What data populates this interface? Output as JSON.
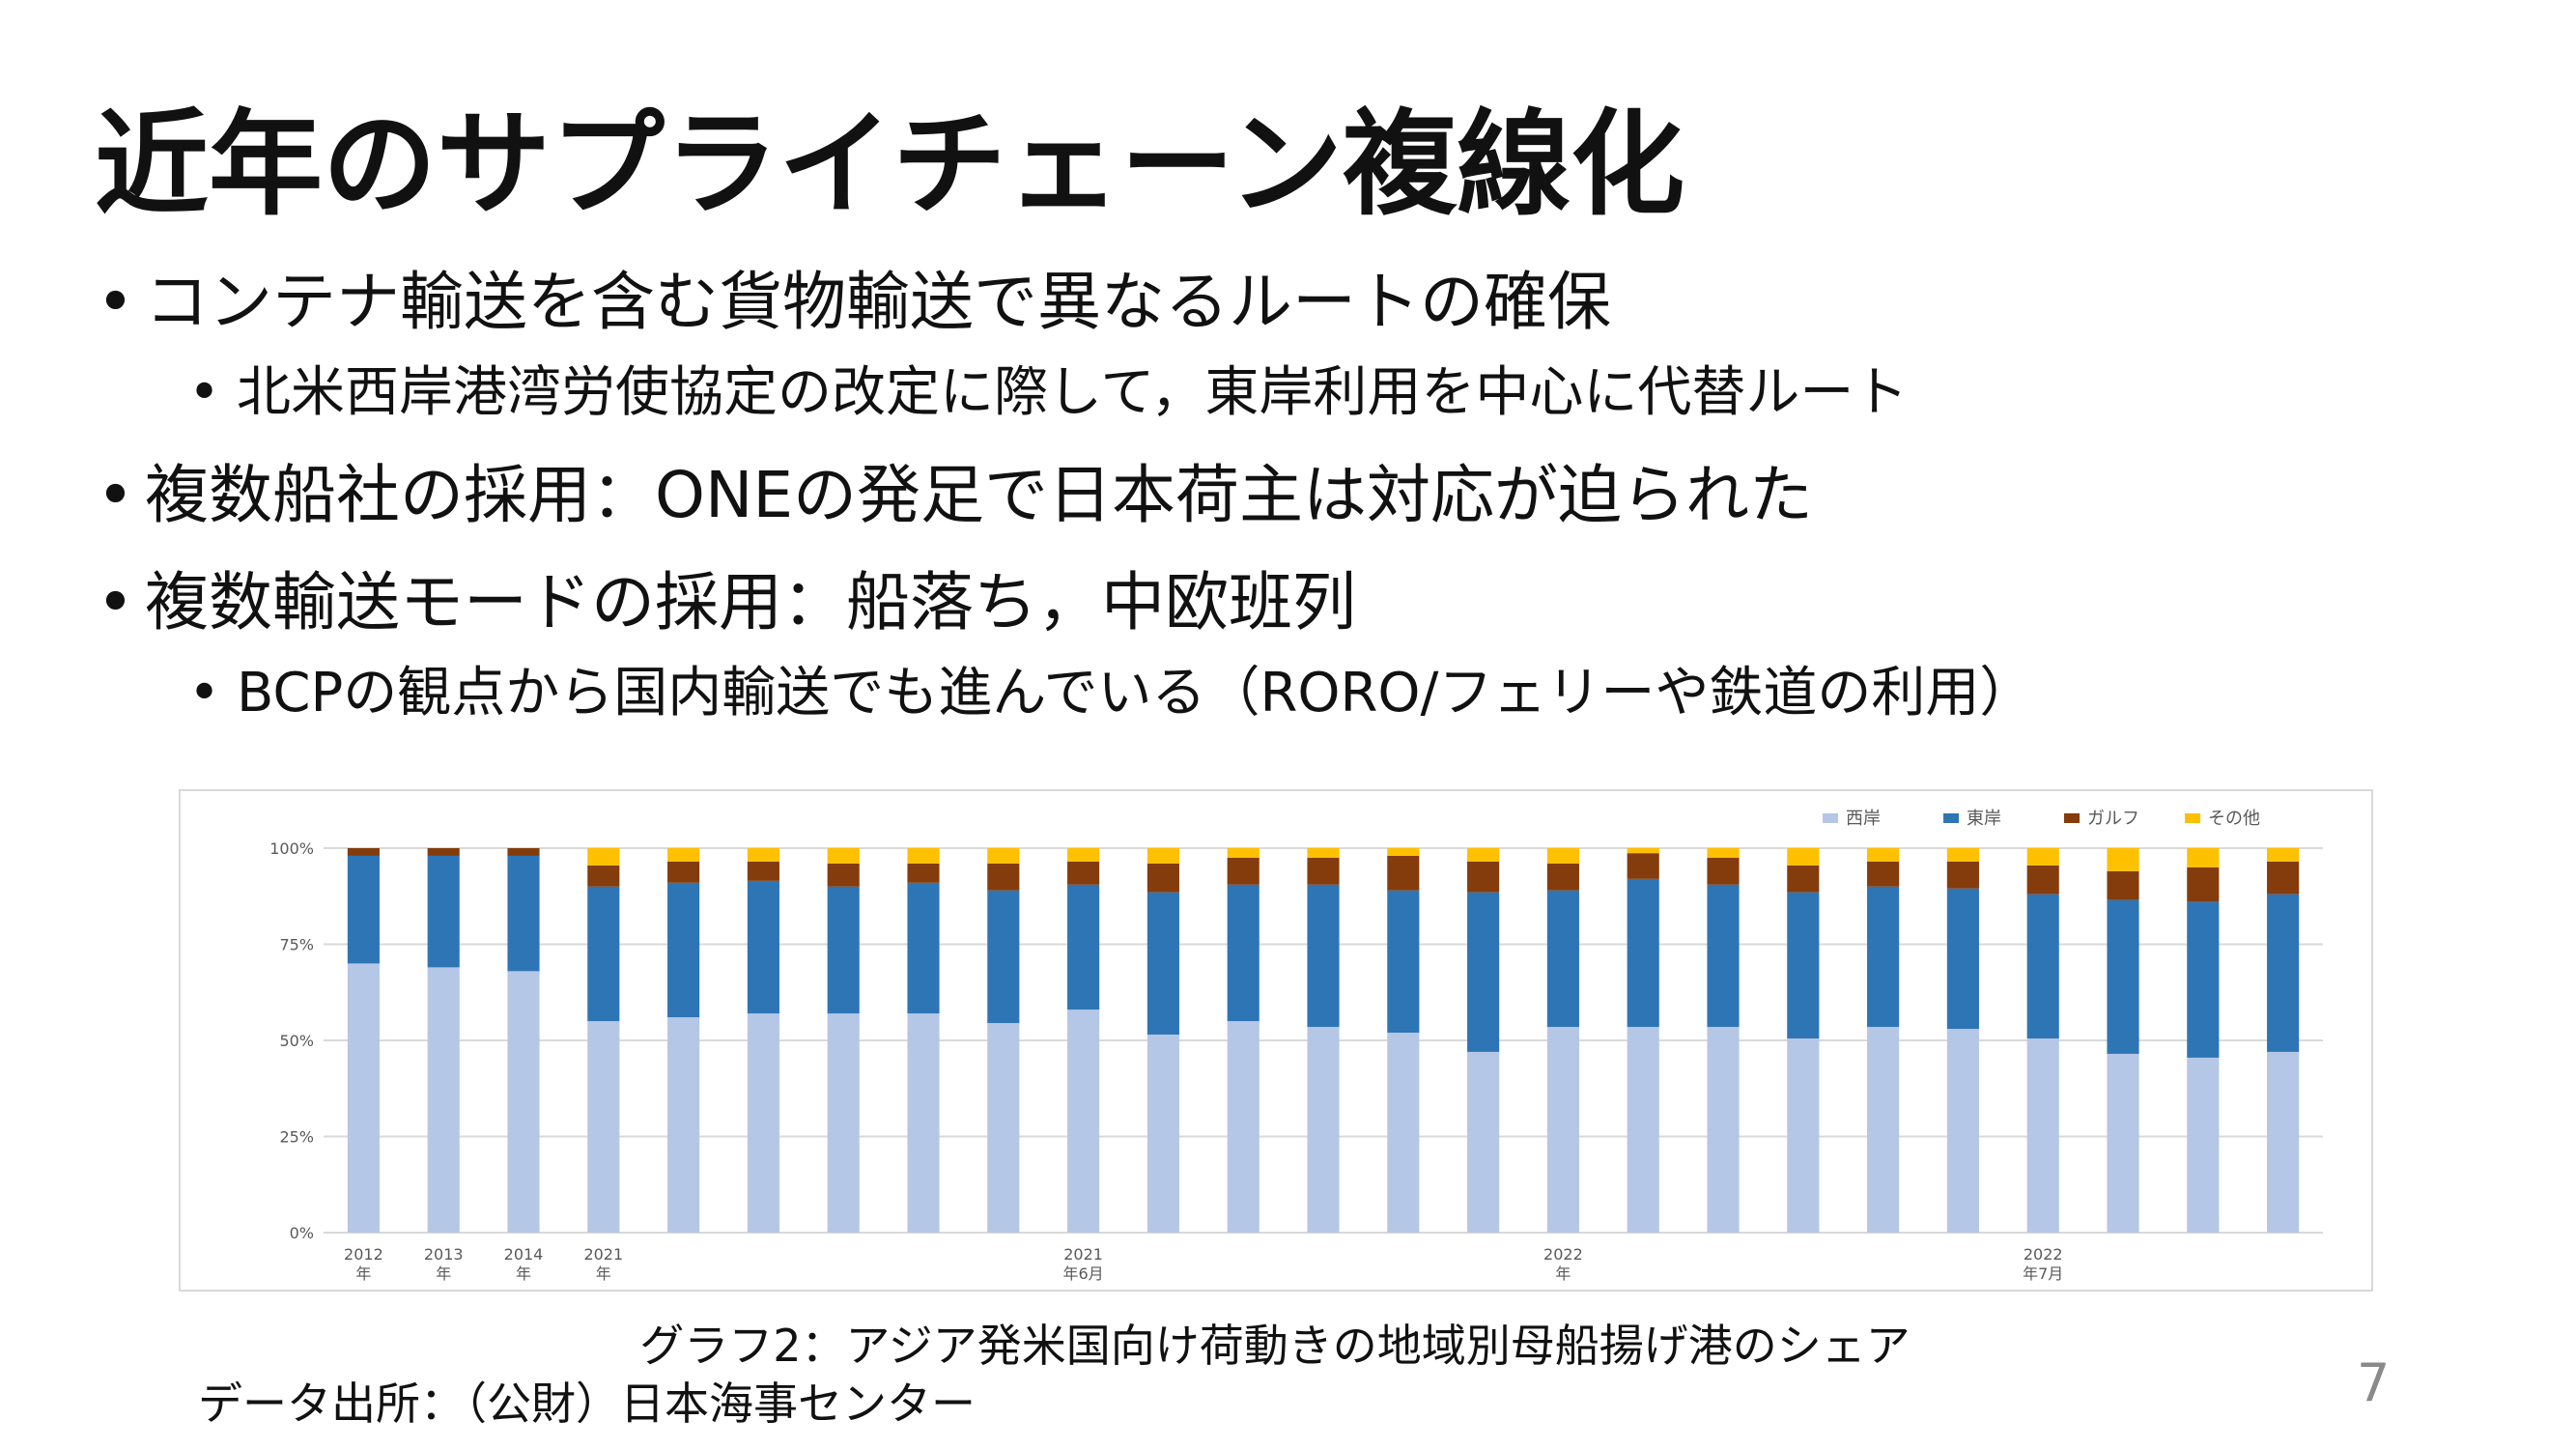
{
  "title": "近年のサプライチェーン複線化",
  "bullets": [
    {
      "level": 1,
      "text": "コンテナ輸送を含む貨物輸送で異なるルートの確保"
    },
    {
      "level": 2,
      "text": "北米西岸港湾労使協定の改定に際して，東岸利用を中心に代替ルート"
    },
    {
      "level": 1,
      "text": "複数船社の採用：ONEの発足で日本荷主は対応が迫られた"
    },
    {
      "level": 1,
      "text": "複数輸送モードの採用：船落ち，中欧班列"
    },
    {
      "level": 2,
      "text": "BCPの観点から国内輸送でも進んでいる（RORO/フェリーや鉄道の利用）"
    }
  ],
  "bullet_glyph": "•",
  "caption": "グラフ2：アジア発米国向け荷動きの地域別母船揚げ港のシェア",
  "source": "データ出所：（公財）日本海事センター",
  "page_number": "7",
  "chart_data": {
    "type": "bar",
    "stacked": true,
    "ylim": [
      0,
      100
    ],
    "yticks": [
      "0%",
      "25%",
      "50%",
      "75%",
      "100%"
    ],
    "legend_position": "top-right",
    "x_labels": [
      {
        "index": 0,
        "line1": "2012",
        "line2": "年"
      },
      {
        "index": 1,
        "line1": "2013",
        "line2": "年"
      },
      {
        "index": 2,
        "line1": "2014",
        "line2": "年"
      },
      {
        "index": 3,
        "line1": "2021",
        "line2": "年"
      },
      {
        "index": 9,
        "line1": "2021",
        "line2": "年6月"
      },
      {
        "index": 15,
        "line1": "2022",
        "line2": "年"
      },
      {
        "index": 21,
        "line1": "2022",
        "line2": "年7月"
      }
    ],
    "series": [
      {
        "name": "西岸",
        "color": "#b4c7e7",
        "values": [
          70,
          69,
          68,
          55,
          56,
          57,
          57,
          57,
          54.5,
          58,
          51.5,
          55,
          53.5,
          52,
          47,
          53.5,
          53.5,
          53.5,
          50.5,
          53.5,
          53,
          50.5,
          46.5,
          45.5,
          47
        ]
      },
      {
        "name": "東岸",
        "color": "#2e75b6",
        "values": [
          28,
          29,
          30,
          35,
          35,
          34.5,
          33,
          34,
          34.5,
          32.5,
          37,
          35.5,
          37,
          37,
          41.5,
          35.5,
          38.5,
          37,
          38,
          36.5,
          36.5,
          37.5,
          40,
          40.5,
          41
        ]
      },
      {
        "name": "ガルフ",
        "color": "#843c0c",
        "values": [
          2,
          2,
          2,
          5.5,
          5.5,
          5,
          6,
          5,
          7,
          6,
          7.5,
          7,
          7,
          9,
          8,
          7,
          6.7,
          7,
          7,
          6.5,
          7,
          7.5,
          7.5,
          9,
          8.5
        ]
      },
      {
        "name": "その他",
        "color": "#ffc000",
        "values": [
          0,
          0,
          0,
          4.5,
          3.5,
          3.5,
          4,
          4,
          4,
          3.5,
          4,
          2.5,
          2.5,
          2,
          3.5,
          4,
          1.3,
          2.5,
          4.5,
          3.5,
          3.5,
          4.5,
          6,
          5,
          3.5
        ]
      }
    ]
  }
}
